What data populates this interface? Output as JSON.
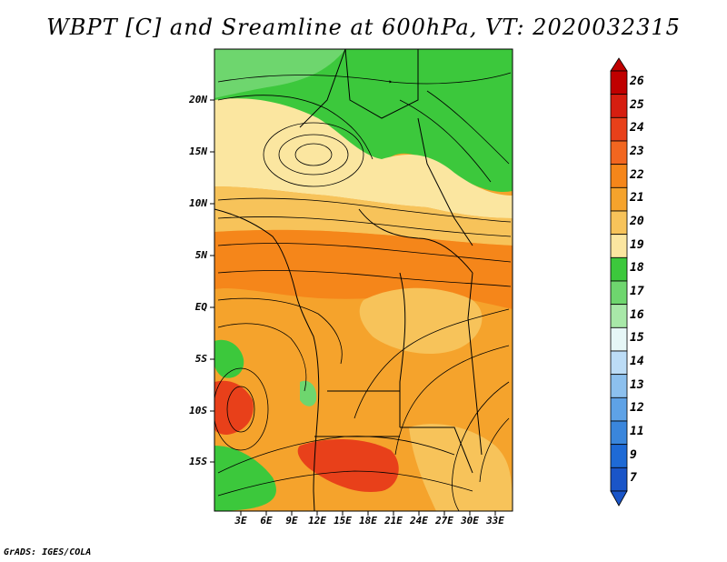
{
  "title": "WBPT [C] and Sreamline at 600hPa, VT: 2020032315",
  "credit": "GrADS: IGES/COLA",
  "y_ticks": [
    "20N",
    "15N",
    "10N",
    "5N",
    "EQ",
    "5S",
    "10S",
    "15S"
  ],
  "x_ticks": [
    "3E",
    "6E",
    "9E",
    "12E",
    "15E",
    "18E",
    "21E",
    "24E",
    "27E",
    "30E",
    "33E"
  ],
  "colorbar": {
    "labels": [
      "26",
      "25",
      "24",
      "23",
      "22",
      "21",
      "20",
      "19",
      "18",
      "17",
      "16",
      "15",
      "14",
      "13",
      "12",
      "11",
      "9",
      "7"
    ],
    "colors": [
      "#c00000",
      "#d61e10",
      "#e8401a",
      "#f26620",
      "#f5861a",
      "#f5a32c",
      "#f7c35a",
      "#fbe6a0",
      "#3cc83c",
      "#6ed66e",
      "#a8e8a8",
      "#e6f6f6",
      "#bcdcf6",
      "#8cc0ee",
      "#5ea2e6",
      "#3a86dc",
      "#1e6ad6",
      "#1a55c8"
    ]
  },
  "map": {
    "projection": "lat-lon",
    "lon_range": [
      "1E",
      "34E"
    ],
    "lat_range": [
      "20S",
      "24N"
    ]
  }
}
